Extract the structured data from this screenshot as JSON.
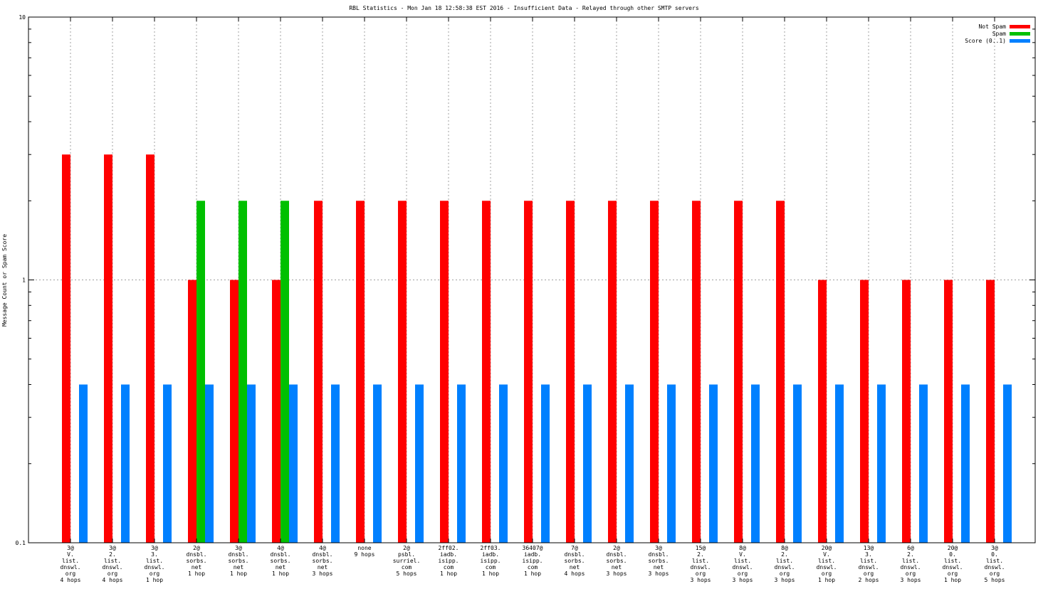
{
  "chart_data": {
    "type": "bar",
    "title": "RBL Statistics - Mon Jan 18 12:58:38 EST 2016 - Insufficient Data - Relayed through other SMTP servers",
    "xlabel": "",
    "ylabel": "Message Count or Spam Score",
    "yscale": "log",
    "ylim": [
      0.1,
      10
    ],
    "y_ticks": [
      "0.1",
      "1",
      "10"
    ],
    "grid": true,
    "legend_position": "top-right",
    "categories": [
      [
        "3@",
        "V.",
        "list.",
        "dnswl.",
        "org",
        "4 hops"
      ],
      [
        "3@",
        "2.",
        "list.",
        "dnswl.",
        "org",
        "4 hops"
      ],
      [
        "3@",
        "3.",
        "list.",
        "dnswl.",
        "org",
        "1 hop"
      ],
      [
        "2@",
        "dnsbl.",
        "sorbs.",
        "net",
        "1 hop"
      ],
      [
        "3@",
        "dnsbl.",
        "sorbs.",
        "net",
        "1 hop"
      ],
      [
        "4@",
        "dnsbl.",
        "sorbs.",
        "net",
        "1 hop"
      ],
      [
        "4@",
        "dnsbl.",
        "sorbs.",
        "net",
        "3 hops"
      ],
      [
        "none",
        "9 hops"
      ],
      [
        "2@",
        "psbl.",
        "surriel.",
        "com",
        "5 hops"
      ],
      [
        "2ff02.",
        "iadb.",
        "isipp.",
        "com",
        "1 hop"
      ],
      [
        "2ff03.",
        "iadb.",
        "isipp.",
        "com",
        "1 hop"
      ],
      [
        "36407@",
        "iadb.",
        "isipp.",
        "com",
        "1 hop"
      ],
      [
        "7@",
        "dnsbl.",
        "sorbs.",
        "net",
        "4 hops"
      ],
      [
        "2@",
        "dnsbl.",
        "sorbs.",
        "net",
        "3 hops"
      ],
      [
        "3@",
        "dnsbl.",
        "sorbs.",
        "net",
        "3 hops"
      ],
      [
        "15@",
        "2.",
        "list.",
        "dnswl.",
        "org",
        "3 hops"
      ],
      [
        "8@",
        "V.",
        "list.",
        "dnswl.",
        "org",
        "3 hops"
      ],
      [
        "8@",
        "2.",
        "list.",
        "dnswl.",
        "org",
        "3 hops"
      ],
      [
        "20@",
        "V.",
        "list.",
        "dnswl.",
        "org",
        "1 hop"
      ],
      [
        "13@",
        "3.",
        "list.",
        "dnswl.",
        "org",
        "2 hops"
      ],
      [
        "6@",
        "2.",
        "list.",
        "dnswl.",
        "org",
        "3 hops"
      ],
      [
        "20@",
        "0.",
        "list.",
        "dnswl.",
        "org",
        "1 hop"
      ],
      [
        "3@",
        "0.",
        "list.",
        "dnswl.",
        "org",
        "5 hops"
      ]
    ],
    "series": [
      {
        "name": "Not Spam",
        "color": "#ff0000",
        "values": [
          3,
          3,
          3,
          1,
          1,
          1,
          2,
          2,
          2,
          2,
          2,
          2,
          2,
          2,
          2,
          2,
          2,
          2,
          1,
          1,
          1,
          1,
          1
        ]
      },
      {
        "name": "Spam",
        "color": "#00c000",
        "values": [
          null,
          null,
          null,
          2,
          2,
          2,
          null,
          null,
          null,
          null,
          null,
          null,
          null,
          null,
          null,
          null,
          null,
          null,
          null,
          null,
          null,
          null,
          null
        ]
      },
      {
        "name": "Score (0..1)",
        "color": "#0080ff",
        "values": [
          0.4,
          0.4,
          0.4,
          0.4,
          0.4,
          0.4,
          0.4,
          0.4,
          0.4,
          0.4,
          0.4,
          0.4,
          0.4,
          0.4,
          0.4,
          0.4,
          0.4,
          0.4,
          0.4,
          0.4,
          0.4,
          0.4,
          0.4
        ]
      }
    ]
  }
}
